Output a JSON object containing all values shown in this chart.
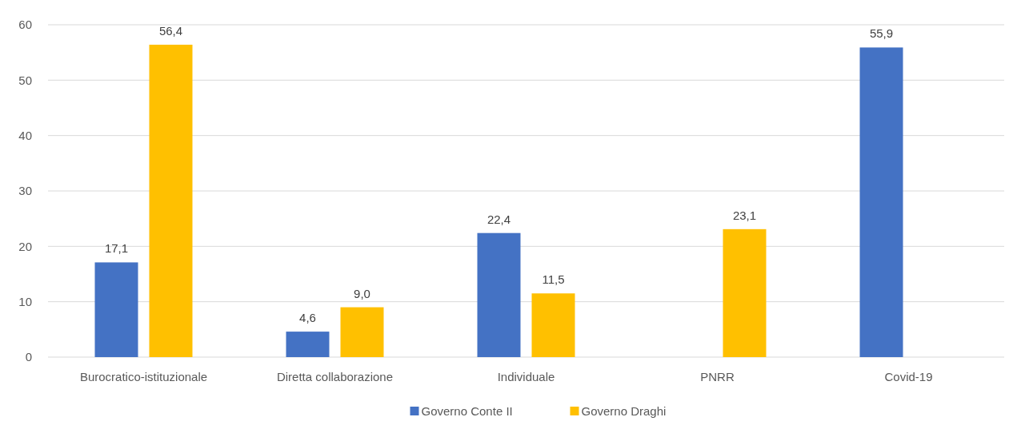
{
  "chart_data": {
    "type": "bar",
    "categories": [
      "Burocratico-istituzionale",
      "Diretta collaborazione",
      "Individuale",
      "PNRR",
      "Covid-19"
    ],
    "series": [
      {
        "name": "Governo Conte II",
        "color": "#4472c4",
        "values": [
          17.1,
          4.6,
          22.4,
          null,
          55.9
        ],
        "value_labels": [
          "17,1",
          "4,6",
          "22,4",
          null,
          "55,9"
        ]
      },
      {
        "name": "Governo Draghi",
        "color": "#ffc000",
        "values": [
          56.4,
          9.0,
          11.5,
          23.1,
          null
        ],
        "value_labels": [
          "56,4",
          "9,0",
          "11,5",
          "23,1",
          null
        ]
      }
    ],
    "ylim": [
      0,
      60
    ],
    "yticks": [
      0,
      10,
      20,
      30,
      40,
      50,
      60
    ],
    "grid": "y",
    "legend": "bottom"
  }
}
